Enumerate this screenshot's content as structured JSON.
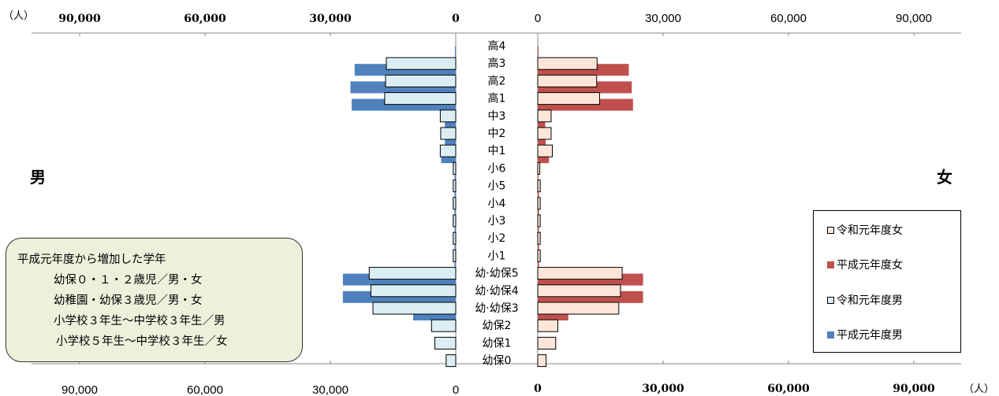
{
  "units": {
    "top_left": "（人）",
    "bottom_right": "（人）"
  },
  "labels": {
    "male": "男",
    "female": "女"
  },
  "axis": {
    "top_left_ticks": [
      "90,000",
      "60,000",
      "30,000",
      "0"
    ],
    "top_right_ticks": [
      "0",
      "30,000",
      "60,000",
      "90,000"
    ],
    "bottom_left_ticks": [
      "90,000",
      "60,000",
      "30,000",
      "0"
    ],
    "bottom_right_ticks": [
      "0",
      "30,000",
      "60,000",
      "90,000"
    ]
  },
  "legend": {
    "items": [
      {
        "label": "令和元年度女",
        "color": "#fde6d8",
        "border": "#000000"
      },
      {
        "label": "平成元年度女",
        "color": "#c0504d",
        "border": "#c0504d"
      },
      {
        "label": "令和元年度男",
        "color": "#dbeef4",
        "border": "#000000"
      },
      {
        "label": "平成元年度男",
        "color": "#4f81bd",
        "border": "#4f81bd"
      }
    ]
  },
  "note": {
    "lines": [
      "平成元年度から増加した学年",
      "幼保０・１・２歳児／男・女",
      "幼稚園・幼保３歳児／男・女",
      "小学校３年生～中学校３年生／男",
      "小学校５年生～中学校３年生／女"
    ]
  },
  "colors": {
    "male_h1": "#4f81bd",
    "female_h1": "#c0504d",
    "male_r1": "#dbeef4",
    "female_r1": "#fde6d8"
  },
  "chart_data": {
    "type": "bar",
    "orientation": "horizontal-population-pyramid",
    "xlim": [
      0,
      100000
    ],
    "categories": [
      "高4",
      "高3",
      "高2",
      "高1",
      "中3",
      "中2",
      "中1",
      "小6",
      "小5",
      "小4",
      "小3",
      "小2",
      "小1",
      "幼·幼保5",
      "幼·幼保4",
      "幼·幼保3",
      "幼保2",
      "幼保1",
      "幼保0"
    ],
    "series": [
      {
        "name": "令和元年度女",
        "side": "female",
        "values": [
          0,
          14200,
          14100,
          14800,
          3200,
          3200,
          3500,
          500,
          600,
          600,
          600,
          600,
          600,
          20200,
          19800,
          19400,
          4800,
          4300,
          2000
        ]
      },
      {
        "name": "平成元年度女",
        "side": "female",
        "values": [
          200,
          21800,
          22500,
          22800,
          1800,
          1900,
          2700,
          200,
          300,
          300,
          300,
          300,
          300,
          25200,
          25200,
          7300,
          0,
          0,
          0
        ]
      },
      {
        "name": "令和元年度男",
        "side": "male",
        "values": [
          0,
          16600,
          16800,
          17000,
          3700,
          3600,
          3700,
          600,
          600,
          600,
          600,
          600,
          600,
          20700,
          20300,
          19800,
          5800,
          5000,
          2300
        ]
      },
      {
        "name": "平成元年度男",
        "side": "male",
        "values": [
          200,
          24200,
          25200,
          24900,
          2600,
          2600,
          3500,
          300,
          300,
          300,
          300,
          300,
          300,
          27000,
          27000,
          10200,
          0,
          0,
          0
        ]
      }
    ]
  }
}
